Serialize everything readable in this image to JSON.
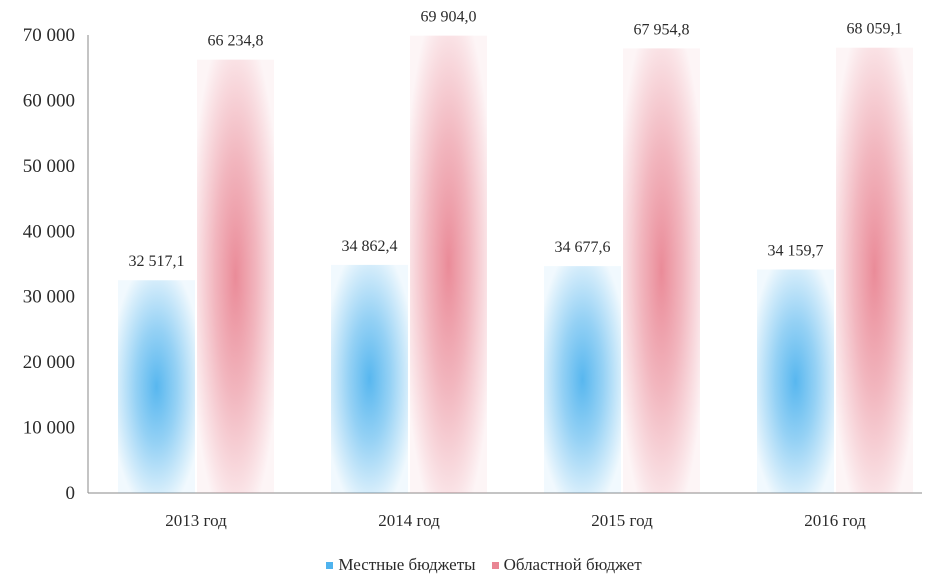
{
  "chart_data": {
    "type": "bar",
    "categories": [
      "2013 год",
      "2014 год",
      "2015 год",
      "2016 год"
    ],
    "series": [
      {
        "name": "Местные бюджеты",
        "values": [
          32517.1,
          34862.4,
          34677.6,
          34159.7
        ],
        "labels": [
          "32 517,1",
          "34 862,4",
          "34 677,6",
          "34 159,7"
        ],
        "color": "#4fb3ee"
      },
      {
        "name": "Областной бюджет",
        "values": [
          66234.8,
          69904.0,
          67954.8,
          68059.1
        ],
        "labels": [
          "66 234,8",
          "69 904,0",
          "67 954,8",
          "68 059,1"
        ],
        "color": "#e98593"
      }
    ],
    "ylim": [
      0,
      70000
    ],
    "yticks": [
      0,
      10000,
      20000,
      30000,
      40000,
      50000,
      60000,
      70000
    ],
    "ytick_labels": [
      "0",
      "10 000",
      "20 000",
      "30 000",
      "40 000",
      "50 000",
      "60 000",
      "70 000"
    ],
    "grid": false,
    "legend": "bottom"
  }
}
